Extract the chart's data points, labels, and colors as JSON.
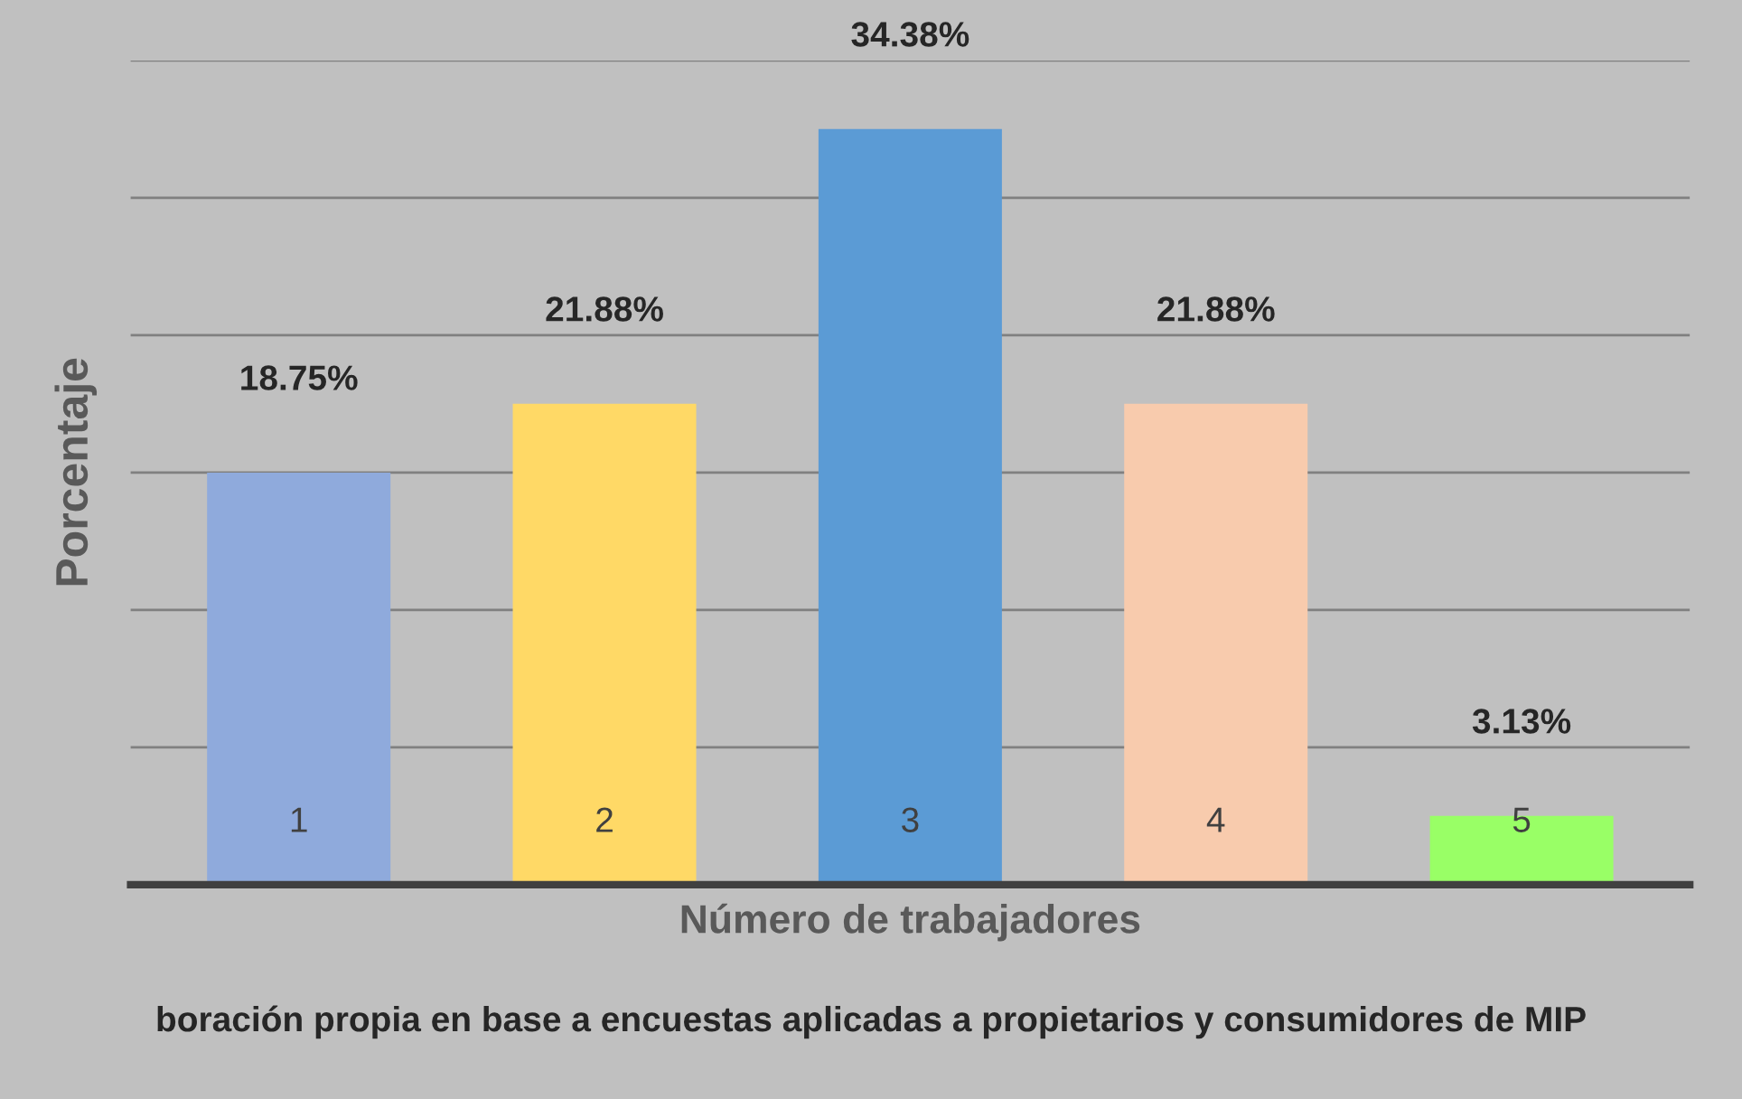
{
  "chart_data": {
    "type": "bar",
    "xlabel": "Número de trabajadores",
    "ylabel": "Porcentaje",
    "categories": [
      "1",
      "2",
      "3",
      "4",
      "5"
    ],
    "values": [
      18.75,
      21.88,
      34.38,
      21.88,
      3.13
    ],
    "colors": [
      "#8faadc",
      "#ffd966",
      "#5b9bd5",
      "#f8cbad",
      "#99ff66"
    ],
    "value_labels": [
      "18.75%",
      "21.88%",
      "34.38%",
      "21.88%",
      "3.13%"
    ],
    "ylim": [
      0,
      37.5
    ],
    "yticks": [
      {
        "value": 6.25,
        "label": null
      },
      {
        "value": 12.5,
        "label": null
      },
      {
        "value": 18.75,
        "label": null
      },
      {
        "value": 25,
        "label": null
      },
      {
        "value": 31.25,
        "label": null
      },
      {
        "value": 37.5,
        "label": null
      }
    ],
    "grid": "y",
    "tick_labels": "x",
    "annotations": [
      "boración propia en base a encuestas aplicadas a propietarios y consumidores de MIP"
    ]
  }
}
